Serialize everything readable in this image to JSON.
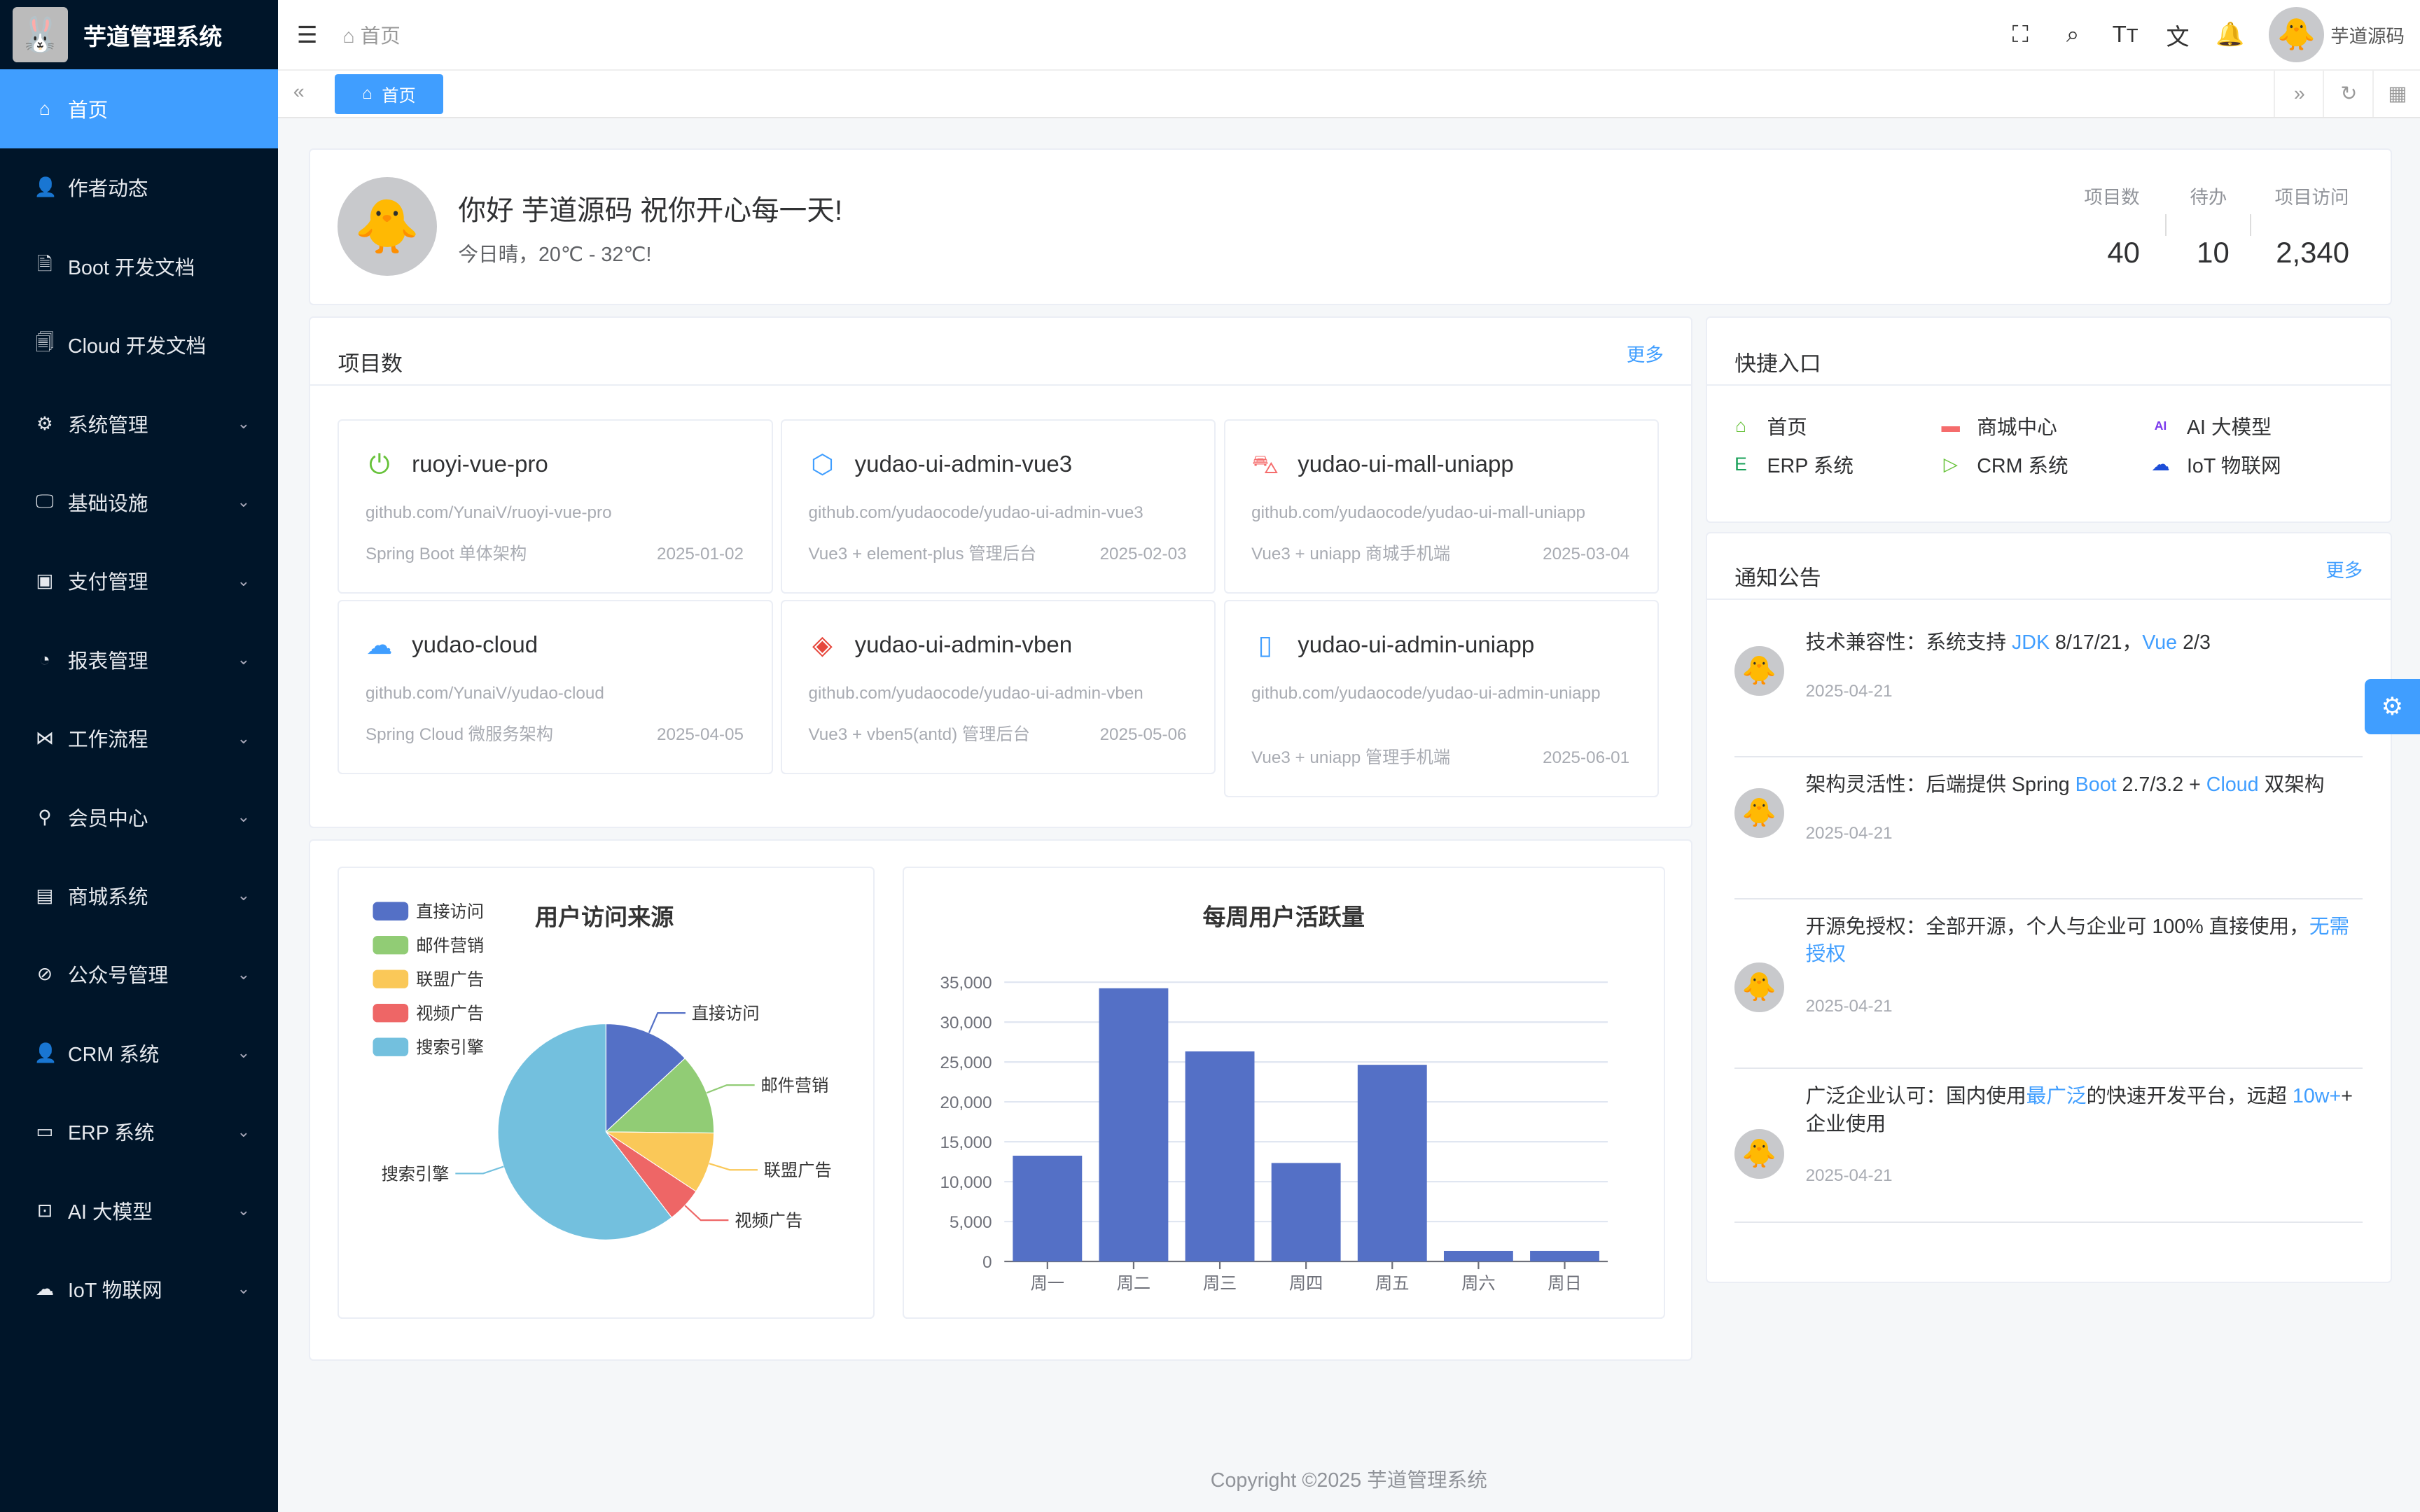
{
  "app": {
    "title": "芋道管理系统",
    "user_name": "芋道源码",
    "copyright": "Copyright ©2025 芋道管理系统"
  },
  "sidebar": {
    "items": [
      {
        "label": "首页",
        "icon": "home-icon",
        "glyph": "⌂",
        "active": true,
        "expandable": false
      },
      {
        "label": "作者动态",
        "icon": "user-icon",
        "glyph": "👤",
        "expandable": false
      },
      {
        "label": "Boot 开发文档",
        "icon": "document-icon",
        "glyph": "🗎",
        "expandable": false
      },
      {
        "label": "Cloud 开发文档",
        "icon": "documents-icon",
        "glyph": "🗐",
        "expandable": false
      },
      {
        "label": "系统管理",
        "icon": "gear-icon",
        "glyph": "⚙",
        "expandable": true
      },
      {
        "label": "基础设施",
        "icon": "monitor-icon",
        "glyph": "🖵",
        "expandable": true
      },
      {
        "label": "支付管理",
        "icon": "payment-icon",
        "glyph": "▣",
        "expandable": true
      },
      {
        "label": "报表管理",
        "icon": "pie-icon",
        "glyph": "◔",
        "expandable": true
      },
      {
        "label": "工作流程",
        "icon": "workflow-icon",
        "glyph": "⋈",
        "expandable": true
      },
      {
        "label": "会员中心",
        "icon": "bicycle-icon",
        "glyph": "⚲",
        "expandable": true
      },
      {
        "label": "商城系统",
        "icon": "shop-icon",
        "glyph": "▤",
        "expandable": true
      },
      {
        "label": "公众号管理",
        "icon": "compass-icon",
        "glyph": "⊘",
        "expandable": true
      },
      {
        "label": "CRM 系统",
        "icon": "user-icon",
        "glyph": "👤",
        "expandable": true
      },
      {
        "label": "ERP 系统",
        "icon": "store-icon",
        "glyph": "▭",
        "expandable": true
      },
      {
        "label": "AI 大模型",
        "icon": "ai-icon",
        "glyph": "⊡",
        "expandable": true
      },
      {
        "label": "IoT 物联网",
        "icon": "cloud-icon",
        "glyph": "☁",
        "expandable": true
      }
    ]
  },
  "header": {
    "breadcrumb": "首页",
    "icons": [
      "fullscreen-icon",
      "search-icon",
      "font-size-icon",
      "translate-icon",
      "bell-icon"
    ]
  },
  "tabs": {
    "active": "首页"
  },
  "welcome": {
    "greeting": "你好 芋道源码 祝你开心每一天!",
    "weather": "今日晴，20℃ - 32℃!",
    "stats": [
      {
        "label": "项目数",
        "value": "40"
      },
      {
        "label": "待办",
        "value": "10"
      },
      {
        "label": "项目访问",
        "value": "2,340"
      }
    ]
  },
  "projects": {
    "title": "项目数",
    "more": "更多",
    "items": [
      {
        "name": "ruoyi-vue-pro",
        "url": "github.com/YunaiV/ruoyi-vue-pro",
        "desc": "Spring Boot 单体架构",
        "date": "2025-01-02",
        "icon": "power-icon",
        "glyph": "⏻",
        "color": "#67c23a"
      },
      {
        "name": "yudao-ui-admin-vue3",
        "url": "github.com/yudaocode/yudao-ui-admin-vue3",
        "desc": "Vue3 + element-plus 管理后台",
        "date": "2025-02-03",
        "icon": "cube-icon",
        "glyph": "⬡",
        "color": "#409eff"
      },
      {
        "name": "yudao-ui-mall-uniapp",
        "url": "github.com/yudaocode/yudao-ui-mall-uniapp",
        "desc": "Vue3 + uniapp 商城手机端",
        "date": "2025-03-04",
        "icon": "shopping-bag-icon",
        "glyph": "⛍",
        "color": "#f56c6c"
      },
      {
        "name": "yudao-cloud",
        "url": "github.com/YunaiV/yudao-cloud",
        "desc": "Spring Cloud 微服务架构",
        "date": "2025-04-05",
        "icon": "cloud-icon",
        "glyph": "☁",
        "color": "#409eff"
      },
      {
        "name": "yudao-ui-admin-vben",
        "url": "github.com/yudaocode/yudao-ui-admin-vben",
        "desc": "Vue3 + vben5(antd) 管理后台",
        "date": "2025-05-06",
        "icon": "diamond-icon",
        "glyph": "◈",
        "color": "#e6473c"
      },
      {
        "name": "yudao-ui-admin-uniapp",
        "url": "github.com/yudaocode/yudao-ui-admin-uniapp",
        "desc": "Vue3 + uniapp 管理手机端",
        "date": "2025-06-01",
        "icon": "phone-icon",
        "glyph": "▯",
        "color": "#409eff"
      }
    ]
  },
  "quick": {
    "title": "快捷入口",
    "items": [
      {
        "label": "首页",
        "icon": "home-icon",
        "glyph": "⌂",
        "color": "#67c23a"
      },
      {
        "label": "商城中心",
        "icon": "shop-icon",
        "glyph": "▬",
        "color": "#f56c6c"
      },
      {
        "label": "AI 大模型",
        "icon": "ai-icon",
        "glyph": "AI",
        "color": "#7c3aed"
      },
      {
        "label": "ERP 系统",
        "icon": "erp-icon",
        "glyph": "E",
        "color": "#18a058"
      },
      {
        "label": "CRM 系统",
        "icon": "crm-icon",
        "glyph": "▷",
        "color": "#67c23a"
      },
      {
        "label": "IoT 物联网",
        "icon": "iot-icon",
        "glyph": "☁",
        "color": "#1d4ed8"
      }
    ]
  },
  "notices": {
    "title": "通知公告",
    "more": "更多",
    "items": [
      {
        "segments": [
          {
            "t": "技术兼容性：系统支持 "
          },
          {
            "t": "JDK",
            "hl": true
          },
          {
            "t": " 8/17/21，"
          },
          {
            "t": "Vue",
            "hl": true
          },
          {
            "t": " 2/3"
          }
        ],
        "date": "2025-04-21"
      },
      {
        "segments": [
          {
            "t": "架构灵活性：后端提供 Spring "
          },
          {
            "t": "Boot",
            "hl": true
          },
          {
            "t": " 2.7/3.2 + "
          },
          {
            "t": "Cloud",
            "hl": true
          },
          {
            "t": " 双架构"
          }
        ],
        "date": "2025-04-21"
      },
      {
        "segments": [
          {
            "t": "开源免授权：全部开源，个人与企业可 100% 直接使用，"
          },
          {
            "t": "无需授权",
            "hl": true
          }
        ],
        "date": "2025-04-21"
      },
      {
        "segments": [
          {
            "t": "广泛企业认可：国内使用"
          },
          {
            "t": "最广泛",
            "hl": true
          },
          {
            "t": "的快速开发平台，远超 "
          },
          {
            "t": "10w+",
            "hl": true
          },
          {
            "t": "+ 企业使用"
          }
        ],
        "date": "2025-04-21"
      }
    ]
  },
  "chart_data": [
    {
      "type": "pie",
      "title": "用户访问来源",
      "legend": "top-left",
      "categories": [
        "直接访问",
        "邮件营销",
        "联盟广告",
        "视频广告",
        "搜索引擎"
      ],
      "values": [
        335,
        310,
        234,
        135,
        1548
      ],
      "colors": [
        "#5470c6",
        "#91cc75",
        "#fac858",
        "#ee6666",
        "#73c0de"
      ]
    },
    {
      "type": "bar",
      "title": "每周用户活跃量",
      "categories": [
        "周一",
        "周二",
        "周三",
        "周四",
        "周五",
        "周六",
        "周日"
      ],
      "values": [
        13253,
        34235,
        26321,
        12340,
        24643,
        1322,
        1324
      ],
      "ylim": [
        0,
        35000
      ],
      "yticks": [
        "0",
        "5,000",
        "10,000",
        "15,000",
        "20,000",
        "25,000",
        "30,000",
        "35,000"
      ],
      "grid": true,
      "color": "#5470c6"
    }
  ]
}
